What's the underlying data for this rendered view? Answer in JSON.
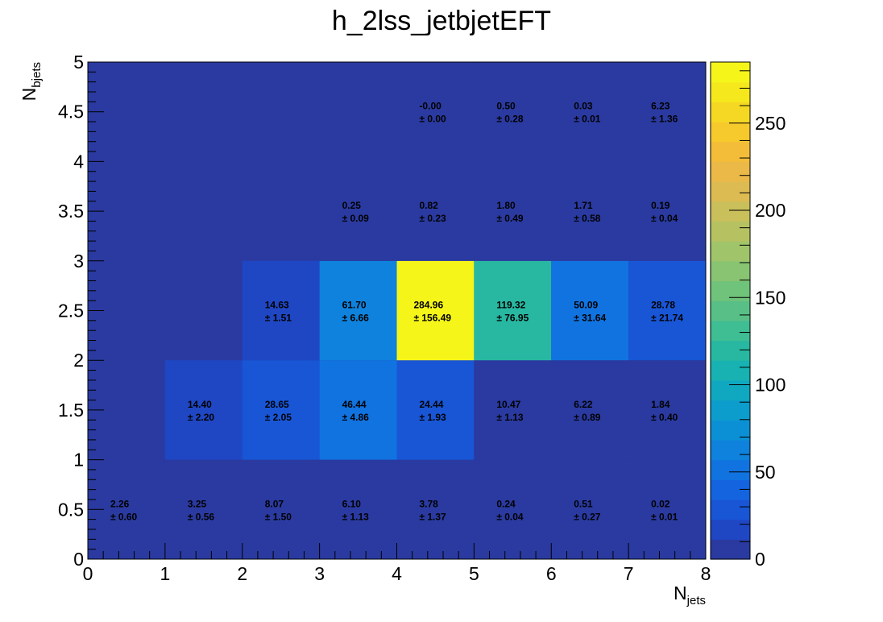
{
  "chart_data": {
    "type": "heatmap",
    "title": "h_2lss_jetbjetEFT",
    "xlabel": {
      "base": "N",
      "sub": "jets"
    },
    "ylabel": {
      "base": "N",
      "sub": "bjets"
    },
    "xlim": [
      0,
      8
    ],
    "ylim": [
      0,
      5
    ],
    "x_bin_edges": [
      0,
      1,
      2,
      3,
      4,
      5,
      6,
      7,
      8
    ],
    "y_bin_edges": [
      0,
      1,
      2,
      3,
      4,
      5
    ],
    "x_tick_labels": [
      "0",
      "1",
      "2",
      "3",
      "4",
      "5",
      "6",
      "7",
      "8"
    ],
    "y_tick_labels": [
      "0",
      "0.5",
      "1",
      "1.5",
      "2",
      "2.5",
      "3",
      "3.5",
      "4",
      "4.5",
      "5"
    ],
    "y_tick_values": [
      0,
      0.5,
      1,
      1.5,
      2,
      2.5,
      3,
      3.5,
      4,
      4.5,
      5
    ],
    "zlim": [
      0,
      285
    ],
    "colorbar_ticks": [
      0,
      50,
      100,
      150,
      200,
      250
    ],
    "colorbar_tick_labels": [
      "0",
      "50",
      "100",
      "150",
      "200",
      "250"
    ],
    "palette": [
      "#2a3aa0",
      "#1f47c4",
      "#1856d6",
      "#1464e0",
      "#1173e0",
      "#0e82dc",
      "#0c90d5",
      "#0c9dcc",
      "#10a8c0",
      "#18b2b2",
      "#28b8a2",
      "#3fbd93",
      "#58c086",
      "#70c37b",
      "#88c472",
      "#a0c46a",
      "#b6c262",
      "#c9bf5b",
      "#dcbb52",
      "#eab947",
      "#f4bd39",
      "#f6c92c",
      "#f5d823",
      "#f5e81d",
      "#f5f51a"
    ],
    "cells": [
      {
        "xbin": 0,
        "ybin": 0,
        "value": "2.26",
        "error": "± 0.60",
        "z": 2.26
      },
      {
        "xbin": 1,
        "ybin": 0,
        "value": "3.25",
        "error": "± 0.56",
        "z": 3.25
      },
      {
        "xbin": 2,
        "ybin": 0,
        "value": "8.07",
        "error": "± 1.50",
        "z": 8.07
      },
      {
        "xbin": 3,
        "ybin": 0,
        "value": "6.10",
        "error": "± 1.13",
        "z": 6.1
      },
      {
        "xbin": 4,
        "ybin": 0,
        "value": "3.78",
        "error": "± 1.37",
        "z": 3.78
      },
      {
        "xbin": 5,
        "ybin": 0,
        "value": "0.24",
        "error": "± 0.04",
        "z": 0.24
      },
      {
        "xbin": 6,
        "ybin": 0,
        "value": "0.51",
        "error": "± 0.27",
        "z": 0.51
      },
      {
        "xbin": 7,
        "ybin": 0,
        "value": "0.02",
        "error": "± 0.01",
        "z": 0.02
      },
      {
        "xbin": 1,
        "ybin": 1,
        "value": "14.40",
        "error": "± 2.20",
        "z": 14.4
      },
      {
        "xbin": 2,
        "ybin": 1,
        "value": "28.65",
        "error": "± 2.05",
        "z": 28.65
      },
      {
        "xbin": 3,
        "ybin": 1,
        "value": "46.44",
        "error": "± 4.86",
        "z": 46.44
      },
      {
        "xbin": 4,
        "ybin": 1,
        "value": "24.44",
        "error": "± 1.93",
        "z": 24.44
      },
      {
        "xbin": 5,
        "ybin": 1,
        "value": "10.47",
        "error": "± 1.13",
        "z": 10.47
      },
      {
        "xbin": 6,
        "ybin": 1,
        "value": "6.22",
        "error": "± 0.89",
        "z": 6.22
      },
      {
        "xbin": 7,
        "ybin": 1,
        "value": "1.84",
        "error": "± 0.40",
        "z": 1.84
      },
      {
        "xbin": 2,
        "ybin": 2,
        "value": "14.63",
        "error": "± 1.51",
        "z": 14.63
      },
      {
        "xbin": 3,
        "ybin": 2,
        "value": "61.70",
        "error": "± 6.66",
        "z": 61.7
      },
      {
        "xbin": 4,
        "ybin": 2,
        "value": "284.96",
        "error": "± 156.49",
        "z": 284.96
      },
      {
        "xbin": 5,
        "ybin": 2,
        "value": "119.32",
        "error": "± 76.95",
        "z": 119.32
      },
      {
        "xbin": 6,
        "ybin": 2,
        "value": "50.09",
        "error": "± 31.64",
        "z": 50.09
      },
      {
        "xbin": 7,
        "ybin": 2,
        "value": "28.78",
        "error": "± 21.74",
        "z": 28.78
      },
      {
        "xbin": 3,
        "ybin": 3,
        "value": "0.25",
        "error": "± 0.09",
        "z": 0.25
      },
      {
        "xbin": 4,
        "ybin": 3,
        "value": "0.82",
        "error": "± 0.23",
        "z": 0.82
      },
      {
        "xbin": 5,
        "ybin": 3,
        "value": "1.80",
        "error": "± 0.49",
        "z": 1.8
      },
      {
        "xbin": 6,
        "ybin": 3,
        "value": "1.71",
        "error": "± 0.58",
        "z": 1.71
      },
      {
        "xbin": 7,
        "ybin": 3,
        "value": "0.19",
        "error": "± 0.04",
        "z": 0.19
      },
      {
        "xbin": 4,
        "ybin": 4,
        "value": "-0.00",
        "error": "± 0.00",
        "z": 0
      },
      {
        "xbin": 5,
        "ybin": 4,
        "value": "0.50",
        "error": "± 0.28",
        "z": 0.5
      },
      {
        "xbin": 6,
        "ybin": 4,
        "value": "0.03",
        "error": "± 0.01",
        "z": 0.03
      },
      {
        "xbin": 7,
        "ybin": 4,
        "value": "6.23",
        "error": "± 1.36",
        "z": 6.23
      }
    ]
  }
}
